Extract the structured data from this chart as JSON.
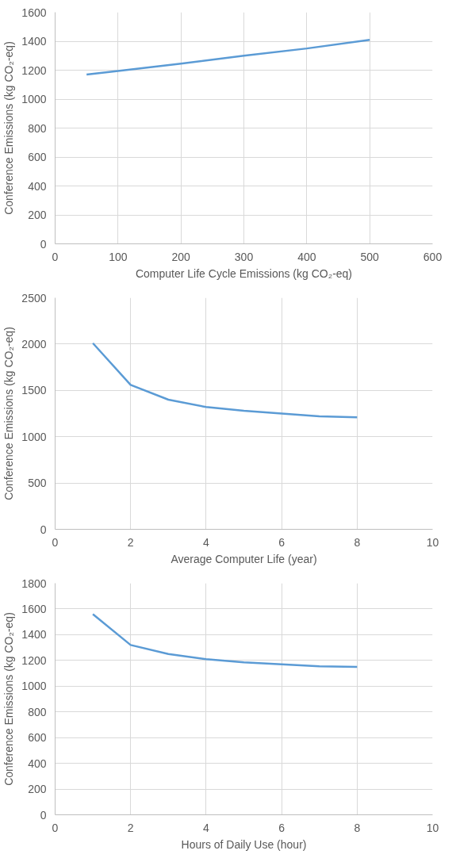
{
  "chart_data": [
    {
      "type": "line",
      "xlabel": "Computer Life Cycle Emissions (kg CO₂-eq)",
      "ylabel": "Conference Emissions (kg CO₂-eq)",
      "x": [
        50,
        100,
        200,
        300,
        400,
        500
      ],
      "series": [
        {
          "color": "#5b9bd5",
          "values": [
            1170,
            1195,
            1245,
            1300,
            1350,
            1410
          ]
        }
      ],
      "xlim": [
        0,
        600
      ],
      "xticks": [
        0,
        100,
        200,
        300,
        400,
        500,
        600
      ],
      "ylim": [
        0,
        1600
      ],
      "yticks": [
        0,
        200,
        400,
        600,
        800,
        1000,
        1200,
        1400,
        1600
      ],
      "grid": true,
      "marker": "none",
      "line_style": "solid"
    },
    {
      "type": "line",
      "xlabel": "Average Computer Life (year)",
      "ylabel": "Conference Emissions (kg CO₂-eq)",
      "x": [
        1,
        2,
        3,
        4,
        5,
        6,
        7,
        8
      ],
      "series": [
        {
          "color": "#5b9bd5",
          "values": [
            2010,
            1560,
            1400,
            1320,
            1280,
            1250,
            1220,
            1210
          ]
        }
      ],
      "xlim": [
        0,
        10
      ],
      "xticks": [
        0,
        2,
        4,
        6,
        8,
        10
      ],
      "ylim": [
        0,
        2500
      ],
      "yticks": [
        0,
        500,
        1000,
        1500,
        2000,
        2500
      ],
      "grid": true,
      "marker": "none",
      "line_style": "solid"
    },
    {
      "type": "line",
      "xlabel": "Hours of Daily Use (hour)",
      "ylabel": "Conference Emissions (kg CO₂-eq)",
      "x": [
        1,
        2,
        3,
        4,
        5,
        6,
        7,
        8
      ],
      "series": [
        {
          "color": "#5b9bd5",
          "values": [
            1560,
            1320,
            1250,
            1210,
            1185,
            1170,
            1155,
            1150
          ]
        }
      ],
      "xlim": [
        0,
        10
      ],
      "xticks": [
        0,
        2,
        4,
        6,
        8,
        10
      ],
      "ylim": [
        0,
        1800
      ],
      "yticks": [
        0,
        200,
        400,
        600,
        800,
        1000,
        1200,
        1400,
        1600,
        1800
      ],
      "grid": true,
      "marker": "none",
      "line_style": "solid"
    }
  ]
}
